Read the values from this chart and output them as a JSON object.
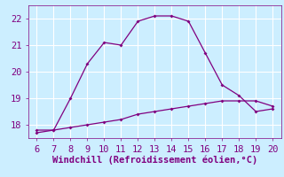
{
  "xlabel": "Windchill (Refroidissement éolien,°C)",
  "line1_x": [
    6,
    7,
    8,
    9,
    10,
    11,
    12,
    13,
    14,
    15,
    16,
    17,
    18,
    19,
    20
  ],
  "line1_y": [
    17.8,
    17.8,
    19.0,
    20.3,
    21.1,
    21.0,
    21.9,
    22.1,
    22.1,
    21.9,
    20.7,
    19.5,
    19.1,
    18.5,
    18.6
  ],
  "line2_x": [
    6,
    7,
    8,
    9,
    10,
    11,
    12,
    13,
    14,
    15,
    16,
    17,
    18,
    19,
    20
  ],
  "line2_y": [
    17.7,
    17.8,
    17.9,
    18.0,
    18.1,
    18.2,
    18.4,
    18.5,
    18.6,
    18.7,
    18.8,
    18.9,
    18.9,
    18.9,
    18.7
  ],
  "line_color": "#800080",
  "bg_color": "#cceeff",
  "grid_color": "#ffffff",
  "ylim": [
    17.5,
    22.5
  ],
  "xlim": [
    5.5,
    20.5
  ],
  "yticks": [
    18,
    19,
    20,
    21,
    22
  ],
  "xticks": [
    6,
    7,
    8,
    9,
    10,
    11,
    12,
    13,
    14,
    15,
    16,
    17,
    18,
    19,
    20
  ],
  "tick_fontsize": 7.5,
  "xlabel_fontsize": 7.5
}
